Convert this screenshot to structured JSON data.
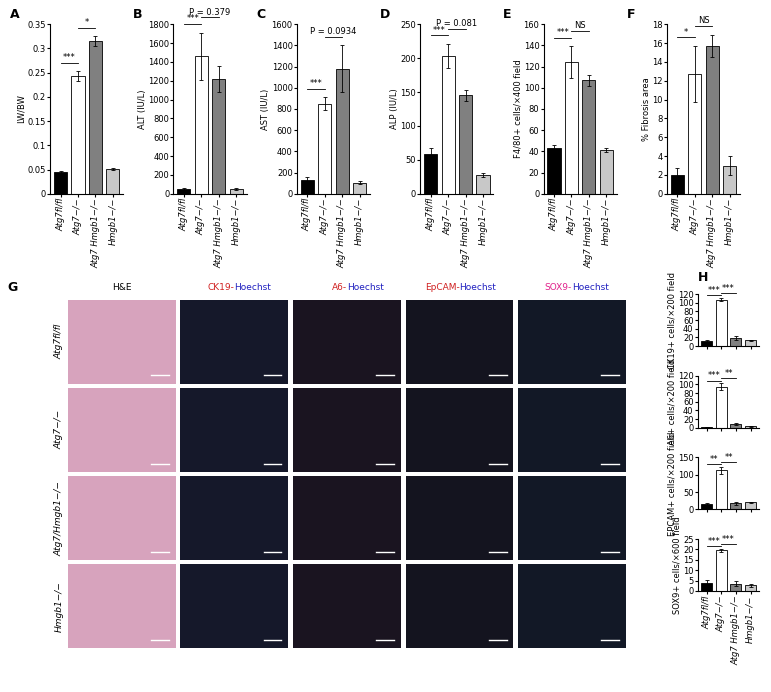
{
  "chart_data": [
    {
      "type": "bar",
      "panel": "A",
      "ylabel": "LW/BW",
      "categories": [
        "Atg7fl/fl",
        "Atg7−/−",
        "Atg7 Hmgb1−/−",
        "Hmgb1−/−"
      ],
      "values": [
        0.045,
        0.243,
        0.315,
        0.052
      ],
      "errors": [
        0.003,
        0.01,
        0.01,
        0.002
      ],
      "colors": [
        "#000000",
        "#ffffff",
        "#808080",
        "#c8c8c8"
      ],
      "ylim": [
        0,
        0.35
      ],
      "yticks": [
        0,
        0.05,
        0.1,
        0.15,
        0.2,
        0.25,
        0.3,
        0.35
      ],
      "annotations": [
        {
          "text": "***",
          "from": 0,
          "to": 1
        },
        {
          "text": "*",
          "from": 1,
          "to": 2
        }
      ]
    },
    {
      "type": "bar",
      "panel": "B",
      "ylabel": "ALT (IU/L)",
      "categories": [
        "Atg7fl/fl",
        "Atg7−/−",
        "Atg7 Hmgb1−/−",
        "Hmgb1−/−"
      ],
      "values": [
        50,
        1460,
        1220,
        50
      ],
      "errors": [
        10,
        250,
        140,
        10
      ],
      "colors": [
        "#000000",
        "#ffffff",
        "#808080",
        "#c8c8c8"
      ],
      "ylim": [
        0,
        1800
      ],
      "yticks": [
        0,
        200,
        400,
        600,
        800,
        1000,
        1200,
        1400,
        1600,
        1800
      ],
      "annotations": [
        {
          "text": "***",
          "from": 0,
          "to": 1
        },
        {
          "text": "P = 0.379",
          "from": 1,
          "to": 2
        }
      ]
    },
    {
      "type": "bar",
      "panel": "C",
      "ylabel": "AST (IU/L)",
      "categories": [
        "Atg7fl/fl",
        "Atg7−/−",
        "Atg7 Hmgb1−/−",
        "Hmgb1−/−"
      ],
      "values": [
        130,
        850,
        1180,
        105
      ],
      "errors": [
        30,
        60,
        220,
        15
      ],
      "colors": [
        "#000000",
        "#ffffff",
        "#808080",
        "#c8c8c8"
      ],
      "ylim": [
        0,
        1600
      ],
      "yticks": [
        0,
        200,
        400,
        600,
        800,
        1000,
        1200,
        1400,
        1600
      ],
      "annotations": [
        {
          "text": "***",
          "from": 0,
          "to": 1
        },
        {
          "text": "P = 0.0934",
          "from": 1,
          "to": 2
        }
      ]
    },
    {
      "type": "bar",
      "panel": "D",
      "ylabel": "ALP (IU/L)",
      "categories": [
        "Atg7fl/fl",
        "Atg7−/−",
        "Atg7 Hmgb1−/−",
        "Hmgb1−/−"
      ],
      "values": [
        58,
        203,
        145,
        27
      ],
      "errors": [
        10,
        18,
        8,
        3
      ],
      "colors": [
        "#000000",
        "#ffffff",
        "#808080",
        "#c8c8c8"
      ],
      "ylim": [
        0,
        250
      ],
      "yticks": [
        0,
        50,
        100,
        150,
        200,
        250
      ],
      "annotations": [
        {
          "text": "***",
          "from": 0,
          "to": 1
        },
        {
          "text": "P = 0.081",
          "from": 1,
          "to": 2
        }
      ]
    },
    {
      "type": "bar",
      "panel": "E",
      "ylabel": "F4/80+ cells/×400 field",
      "categories": [
        "Atg7fl/fl",
        "Atg7−/−",
        "Atg7 Hmgb1−/−",
        "Hmgb1−/−"
      ],
      "values": [
        43,
        124,
        107,
        41
      ],
      "errors": [
        3,
        15,
        5,
        2
      ],
      "colors": [
        "#000000",
        "#ffffff",
        "#808080",
        "#c8c8c8"
      ],
      "ylim": [
        0,
        160
      ],
      "yticks": [
        0,
        20,
        40,
        60,
        80,
        100,
        120,
        140,
        160
      ],
      "annotations": [
        {
          "text": "***",
          "from": 0,
          "to": 1
        },
        {
          "text": "NS",
          "from": 1,
          "to": 2
        }
      ]
    },
    {
      "type": "bar",
      "panel": "F",
      "ylabel": "% Fibrosis area",
      "categories": [
        "Atg7fl/fl",
        "Atg7−/−",
        "Atg7 Hmgb1−/−",
        "Hmgb1−/−"
      ],
      "values": [
        2,
        12.7,
        15.7,
        3
      ],
      "errors": [
        0.7,
        3,
        1.2,
        1
      ],
      "colors": [
        "#000000",
        "#ffffff",
        "#808080",
        "#c8c8c8"
      ],
      "ylim": [
        0,
        18
      ],
      "yticks": [
        0,
        2,
        4,
        6,
        8,
        10,
        12,
        14,
        16,
        18
      ],
      "annotations": [
        {
          "text": "*",
          "from": 0,
          "to": 1
        },
        {
          "text": "NS",
          "from": 1,
          "to": 2
        }
      ]
    },
    {
      "type": "bar",
      "panel": "H",
      "ylabel": "CK19+ cells/×200 field",
      "tick_labels": "y",
      "categories": [
        "Atg7fl/fl",
        "Atg7−/−",
        "Atg7 Hmgb1−/−",
        "Hmgb1−/−"
      ],
      "values": [
        12,
        107,
        18,
        13
      ],
      "errors": [
        2,
        4,
        5,
        1
      ],
      "colors": [
        "#000000",
        "#ffffff",
        "#808080",
        "#c8c8c8"
      ],
      "ylim": [
        0,
        120
      ],
      "yticks": [
        0,
        20,
        40,
        60,
        80,
        100,
        120
      ],
      "annotations": [
        {
          "text": "***",
          "from": 0,
          "to": 1
        },
        {
          "text": "***",
          "from": 1,
          "to": 2
        }
      ]
    },
    {
      "type": "bar",
      "ylabel": "A6+ cells/×200 field",
      "tick_labels": "y",
      "categories": [
        "Atg7fl/fl",
        "Atg7−/−",
        "Atg7 Hmgb1−/−",
        "Hmgb1−/−"
      ],
      "values": [
        1,
        95,
        8,
        3
      ],
      "errors": [
        0.5,
        8,
        2,
        1
      ],
      "colors": [
        "#000000",
        "#ffffff",
        "#808080",
        "#c8c8c8"
      ],
      "ylim": [
        0,
        120
      ],
      "yticks": [
        0,
        20,
        40,
        60,
        80,
        100,
        120
      ],
      "annotations": [
        {
          "text": "***",
          "from": 0,
          "to": 1
        },
        {
          "text": "**",
          "from": 1,
          "to": 2
        }
      ]
    },
    {
      "type": "bar",
      "ylabel": "EPCAM+ cells/×200 field",
      "tick_labels": "y",
      "categories": [
        "Atg7fl/fl",
        "Atg7−/−",
        "Atg7 Hmgb1−/−",
        "Hmgb1−/−"
      ],
      "values": [
        15,
        113,
        17,
        20
      ],
      "errors": [
        3,
        10,
        5,
        0.5
      ],
      "colors": [
        "#000000",
        "#ffffff",
        "#808080",
        "#c8c8c8"
      ],
      "ylim": [
        0,
        150
      ],
      "yticks": [
        0,
        50,
        100,
        150
      ],
      "annotations": [
        {
          "text": "**",
          "from": 0,
          "to": 1
        },
        {
          "text": "**",
          "from": 1,
          "to": 2
        }
      ]
    },
    {
      "type": "bar",
      "ylabel": "SOX9+ cells/×600 field",
      "categories": [
        "Atg7fl/fl",
        "Atg7−/−",
        "Atg7 Hmgb1−/−",
        "Hmgb1−/−"
      ],
      "values": [
        4,
        19.5,
        3.5,
        2.8
      ],
      "errors": [
        1.5,
        0.7,
        1.2,
        0.7
      ],
      "colors": [
        "#000000",
        "#ffffff",
        "#808080",
        "#c8c8c8"
      ],
      "ylim": [
        0,
        25
      ],
      "yticks": [
        0,
        5,
        10,
        15,
        20,
        25
      ],
      "annotations": [
        {
          "text": "***",
          "from": 0,
          "to": 1
        },
        {
          "text": "***",
          "from": 1,
          "to": 2
        }
      ]
    }
  ],
  "image_grid": {
    "panel": "G",
    "columns": [
      "H&E",
      "CK19-Hoechst",
      "A6-Hoechst",
      "EpCAM-Hoechst",
      "SOX9-Hoechst"
    ],
    "rows": [
      "Atg7fl/fl",
      "Atg7−/−",
      "Atg7/Hmgb1−/−",
      "Hmgb1−/−"
    ]
  }
}
